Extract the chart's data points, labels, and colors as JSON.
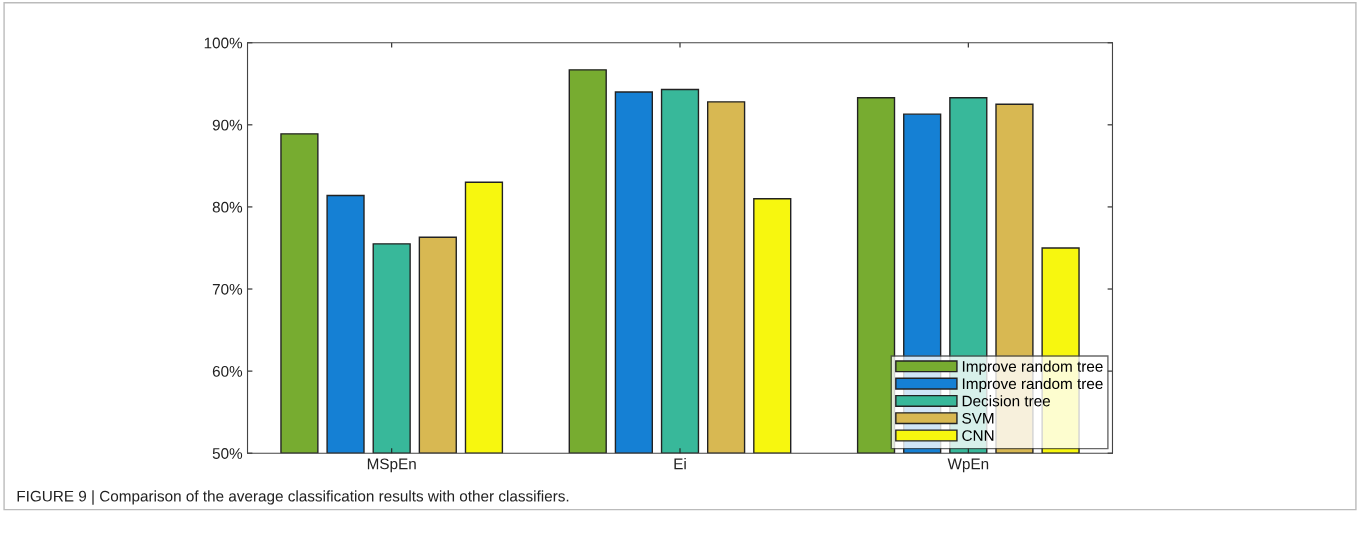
{
  "chart_data": {
    "type": "bar",
    "categories": [
      "MSpEn",
      "Ei",
      "WpEn"
    ],
    "series": [
      {
        "name": "Improve random tree",
        "color": "#77ac30",
        "values": [
          88.9,
          96.7,
          93.3
        ]
      },
      {
        "name": "Improve random tree",
        "color": "#1580d4",
        "values": [
          81.4,
          94.0,
          91.3
        ]
      },
      {
        "name": "Decision tree",
        "color": "#38b89a",
        "values": [
          75.5,
          94.3,
          93.3
        ]
      },
      {
        "name": "SVM",
        "color": "#d8b852",
        "values": [
          76.3,
          92.8,
          92.5
        ]
      },
      {
        "name": "CNN",
        "color": "#f7f70f",
        "values": [
          83.0,
          81.0,
          75.0
        ]
      }
    ],
    "ylim": [
      50,
      100
    ],
    "yticks": [
      {
        "value": 50,
        "label": "50%"
      },
      {
        "value": 60,
        "label": "60%"
      },
      {
        "value": 70,
        "label": "70%"
      },
      {
        "value": 80,
        "label": "80%"
      },
      {
        "value": 90,
        "label": "90%"
      },
      {
        "value": 100,
        "label": "100%"
      }
    ],
    "grid": false,
    "legend": "bottom right",
    "annotations": [
      "FIGURE 9 | Comparison of the average classification results with other classifiers."
    ]
  }
}
